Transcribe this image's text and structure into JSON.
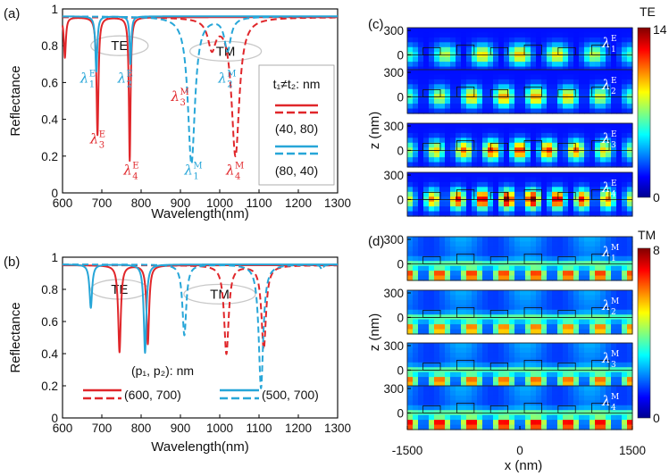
{
  "chart_data": [
    {
      "id": "a",
      "type": "line",
      "panel_label": "(a)",
      "xlabel": "Wavelength(nm)",
      "ylabel": "Reflectance",
      "xlim": [
        600,
        1300
      ],
      "ylim": [
        0,
        1
      ],
      "xticks": [
        "600",
        "700",
        "800",
        "900",
        "1000",
        "1100",
        "1200",
        "1300"
      ],
      "yticks": [
        "0",
        "0.2",
        "0.4",
        "0.6",
        "0.8",
        "1"
      ],
      "legend_title": "t₁≠t₂: nm",
      "series": [
        {
          "name": "(40, 80) solid",
          "label": "(40, 80)",
          "color": "#e0262a",
          "dash": false,
          "baseline": 0.955,
          "dips": [
            {
              "x": 606,
              "depth": 0.22,
              "w": 3
            },
            {
              "x": 689,
              "depth": 0.64,
              "w": 3
            },
            {
              "x": 771,
              "depth": 0.78,
              "w": 2.6
            }
          ]
        },
        {
          "name": "(40, 80) dashed",
          "label": "",
          "color": "#e0262a",
          "dash": true,
          "baseline": 0.955,
          "dips": [
            {
              "x": 980,
              "depth": 0.16,
              "w": 12
            },
            {
              "x": 1040,
              "depth": 0.75,
              "w": 12
            }
          ]
        },
        {
          "name": "(80, 40) solid",
          "label": "(80, 40)",
          "color": "#27a6d8",
          "dash": false,
          "baseline": 0.96,
          "dips": [
            {
              "x": 686,
              "depth": 0.3,
              "w": 3
            },
            {
              "x": 773,
              "depth": 0.26,
              "w": 2.6
            }
          ]
        },
        {
          "name": "(80, 40) dashed",
          "label": "",
          "color": "#27a6d8",
          "dash": true,
          "baseline": 0.96,
          "dips": [
            {
              "x": 928,
              "depth": 0.8,
              "w": 11
            },
            {
              "x": 1020,
              "depth": 0.18,
              "w": 10
            }
          ]
        }
      ],
      "annotations": [
        {
          "base": "λ",
          "sup": "E",
          "sub": "1",
          "x": 645,
          "y": 0.6,
          "color": "#27a6d8"
        },
        {
          "base": "λ",
          "sup": "E",
          "sub": "2",
          "x": 740,
          "y": 0.6,
          "color": "#27a6d8"
        },
        {
          "base": "λ",
          "sup": "E",
          "sub": "3",
          "x": 670,
          "y": 0.27,
          "color": "#e0262a"
        },
        {
          "base": "λ",
          "sup": "E",
          "sub": "4",
          "x": 755,
          "y": 0.1,
          "color": "#e0262a"
        },
        {
          "base": "λ",
          "sup": "M",
          "sub": "3",
          "x": 876,
          "y": 0.5,
          "color": "#e0262a"
        },
        {
          "base": "λ",
          "sup": "M",
          "sub": "2",
          "x": 996,
          "y": 0.6,
          "color": "#27a6d8"
        },
        {
          "base": "λ",
          "sup": "M",
          "sub": "1",
          "x": 910,
          "y": 0.1,
          "color": "#27a6d8"
        },
        {
          "base": "λ",
          "sup": "M",
          "sub": "4",
          "x": 1016,
          "y": 0.1,
          "color": "#e0262a"
        }
      ],
      "boxes": [
        {
          "label": "TE",
          "x": 745,
          "y": 0.8
        },
        {
          "label": "TM",
          "x": 1015,
          "y": 0.77
        }
      ]
    },
    {
      "id": "b",
      "type": "line",
      "panel_label": "(b)",
      "xlabel": "Wavelength(nm)",
      "ylabel": "Reflectance",
      "xlim": [
        600,
        1300
      ],
      "ylim": [
        0,
        1
      ],
      "xticks": [
        "600",
        "700",
        "800",
        "900",
        "1000",
        "1100",
        "1200",
        "1300"
      ],
      "yticks": [
        "0",
        "0.2",
        "0.4",
        "0.6",
        "0.8",
        "1"
      ],
      "legend_title": "(p₁, p₂): nm",
      "series": [
        {
          "name": "(600, 700) solid",
          "label": "(600, 700)",
          "color": "#e0262a",
          "dash": false,
          "baseline": 0.95,
          "dips": [
            {
              "x": 745,
              "depth": 0.54,
              "w": 4
            },
            {
              "x": 817,
              "depth": 0.49,
              "w": 4
            }
          ]
        },
        {
          "name": "(600, 700) dashed",
          "label": "",
          "color": "#e0262a",
          "dash": true,
          "baseline": 0.95,
          "dips": [
            {
              "x": 1017,
              "depth": 0.55,
              "w": 7
            },
            {
              "x": 1112,
              "depth": 0.52,
              "w": 7
            }
          ]
        },
        {
          "name": "(500, 700) solid",
          "label": "(500, 700)",
          "color": "#27a6d8",
          "dash": false,
          "baseline": 0.955,
          "dips": [
            {
              "x": 672,
              "depth": 0.27,
              "w": 4
            },
            {
              "x": 810,
              "depth": 0.55,
              "w": 4
            }
          ]
        },
        {
          "name": "(500, 700) dashed",
          "label": "",
          "color": "#27a6d8",
          "dash": true,
          "baseline": 0.955,
          "dips": [
            {
              "x": 910,
              "depth": 0.44,
              "w": 6
            },
            {
              "x": 1105,
              "depth": 0.77,
              "w": 7
            },
            {
              "x": 1260,
              "depth": 0.03,
              "w": 4
            }
          ]
        }
      ],
      "boxes": [
        {
          "label": "TE",
          "x": 745,
          "y": 0.8
        },
        {
          "label": "TM",
          "x": 1000,
          "y": 0.77
        }
      ]
    },
    {
      "id": "c",
      "type": "heatmap",
      "panel_label": "(c)",
      "mode": "TE",
      "ylabel": "z (nm)",
      "zticks": [
        "300",
        "0"
      ],
      "colorbar_max": "14",
      "colorbar_min": "0",
      "maps": [
        {
          "base": "λ",
          "sup": "E",
          "sub": "1",
          "intensity": 0.35
        },
        {
          "base": "λ",
          "sup": "E",
          "sub": "2",
          "intensity": 0.45
        },
        {
          "base": "λ",
          "sup": "E",
          "sub": "3",
          "intensity": 0.65
        },
        {
          "base": "λ",
          "sup": "E",
          "sub": "4",
          "intensity": 0.9
        }
      ]
    },
    {
      "id": "d",
      "type": "heatmap",
      "panel_label": "(d)",
      "mode": "TM",
      "ylabel": "z (nm)",
      "xlabel": "x (nm)",
      "zticks": [
        "300",
        "0"
      ],
      "xticks": [
        "-1500",
        "0",
        "1500"
      ],
      "colorbar_max": "8",
      "colorbar_min": "0",
      "maps": [
        {
          "base": "λ",
          "sup": "M",
          "sub": "1",
          "intensity": 0.7
        },
        {
          "base": "λ",
          "sup": "M",
          "sub": "2",
          "intensity": 0.55
        },
        {
          "base": "λ",
          "sup": "M",
          "sub": "3",
          "intensity": 0.6
        },
        {
          "base": "λ",
          "sup": "M",
          "sub": "4",
          "intensity": 0.85
        }
      ]
    }
  ]
}
